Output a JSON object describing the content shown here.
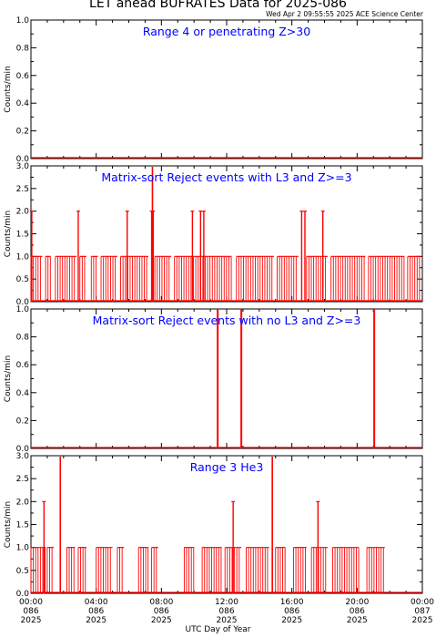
{
  "header": {
    "title": "LET ahead BUFRATES Data for 2025-086",
    "timestamp": "Wed Apr  2 09:55:55 2025 ACE Science Center"
  },
  "xaxis": {
    "label": "UTC Day of Year",
    "ticks": [
      {
        "time": "00:00",
        "doy": "086",
        "year": "2025"
      },
      {
        "time": "04:00",
        "doy": "086",
        "year": "2025"
      },
      {
        "time": "08:00",
        "doy": "086",
        "year": "2025"
      },
      {
        "time": "12:00",
        "doy": "086",
        "year": "2025"
      },
      {
        "time": "16:00",
        "doy": "086",
        "year": "2025"
      },
      {
        "time": "20:00",
        "doy": "086",
        "year": "2025"
      },
      {
        "time": "00:00",
        "doy": "087",
        "year": "2025"
      }
    ]
  },
  "colors": {
    "series": "#ff0000",
    "panel_title": "#0000ff",
    "axes": "#000000"
  },
  "chart_data": [
    {
      "type": "line",
      "title": "Range 4 or  penetrating Z>30",
      "ylabel": "Counts/min",
      "xlim": [
        0,
        24
      ],
      "ylim": [
        0,
        1.0
      ],
      "yticks": [
        "0.0",
        "0.2",
        "0.4",
        "0.6",
        "0.8",
        "1.0"
      ],
      "x_unit": "UTC hour",
      "values_note": "all zero",
      "x": [
        0,
        24
      ],
      "y": [
        0,
        0
      ]
    },
    {
      "type": "line",
      "title": "Matrix-sort Reject events with L3 and Z>=3",
      "ylabel": "Counts/min",
      "xlim": [
        0,
        24
      ],
      "ylim": [
        0,
        3.0
      ],
      "yticks": [
        "0.0",
        "0.5",
        "1.0",
        "1.5",
        "2.0",
        "2.5",
        "3.0"
      ],
      "x_unit": "UTC hour",
      "spikes_2": [
        0.05,
        2.9,
        5.9,
        7.4,
        7.5,
        9.9,
        10.4,
        10.6,
        16.6,
        16.8,
        17.9
      ],
      "spikes_3": [
        7.45
      ],
      "baseline_1_segments": [
        [
          0.0,
          0.7
        ],
        [
          0.9,
          1.2
        ],
        [
          1.5,
          2.8
        ],
        [
          3.0,
          3.4
        ],
        [
          3.7,
          4.1
        ],
        [
          4.3,
          5.3
        ],
        [
          5.5,
          7.2
        ],
        [
          7.6,
          8.6
        ],
        [
          8.8,
          12.3
        ],
        [
          12.6,
          14.9
        ],
        [
          15.1,
          16.4
        ],
        [
          16.9,
          18.2
        ],
        [
          18.4,
          20.5
        ],
        [
          20.7,
          22.9
        ],
        [
          23.1,
          23.9
        ]
      ]
    },
    {
      "type": "line",
      "title": "Matrix-sort Reject events with no L3 and Z>=3",
      "ylabel": "Counts/min",
      "xlim": [
        0,
        24
      ],
      "ylim": [
        0,
        1.0
      ],
      "yticks": [
        "0.0",
        "0.2",
        "0.4",
        "0.6",
        "0.8",
        "1.0"
      ],
      "x_unit": "UTC hour",
      "spikes_1": [
        11.45,
        12.9,
        21.05
      ]
    },
    {
      "type": "line",
      "title": "Range 3 He3",
      "ylabel": "Counts/min",
      "xlim": [
        0,
        24
      ],
      "ylim": [
        0,
        3.0
      ],
      "yticks": [
        "0.0",
        "0.5",
        "1.0",
        "1.5",
        "2.0",
        "2.5",
        "3.0"
      ],
      "x_unit": "UTC hour",
      "spikes_2": [
        0.8,
        12.4,
        17.6
      ],
      "spikes_3": [
        1.8,
        14.8
      ],
      "baseline_1_segments": [
        [
          0.0,
          0.9
        ],
        [
          1.0,
          1.4
        ],
        [
          2.2,
          2.7
        ],
        [
          2.9,
          3.4
        ],
        [
          4.0,
          5.0
        ],
        [
          5.3,
          5.7
        ],
        [
          6.6,
          7.2
        ],
        [
          7.4,
          7.8
        ],
        [
          9.4,
          10.0
        ],
        [
          10.5,
          11.7
        ],
        [
          11.9,
          12.9
        ],
        [
          13.2,
          14.6
        ],
        [
          15.0,
          15.6
        ],
        [
          16.1,
          16.9
        ],
        [
          17.2,
          18.2
        ],
        [
          18.5,
          20.1
        ],
        [
          20.6,
          21.7
        ]
      ]
    }
  ]
}
